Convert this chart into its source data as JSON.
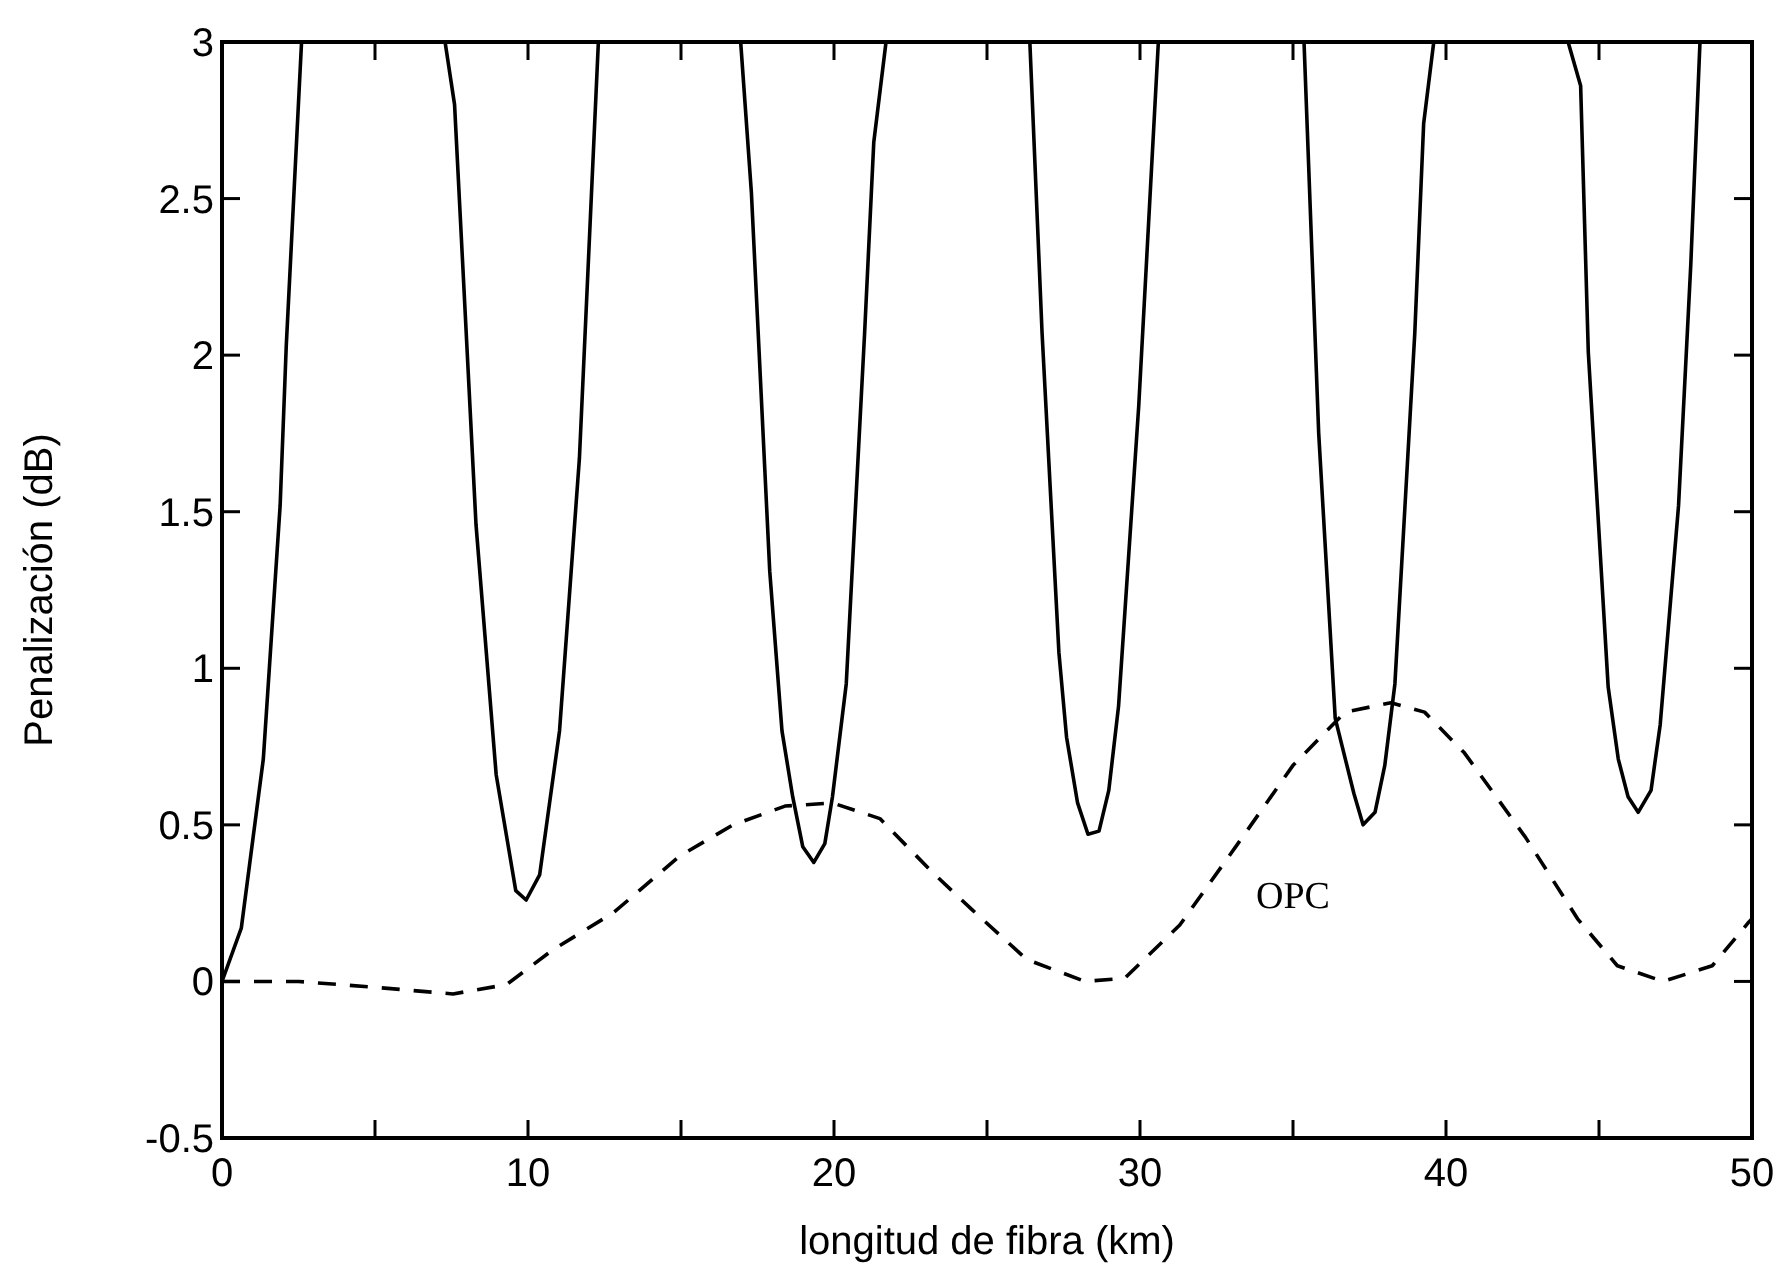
{
  "chart_data": {
    "type": "line",
    "xlabel": "longitud de fibra (km)",
    "ylabel": "Penalización (dB)",
    "xlim": [
      0,
      50
    ],
    "ylim": [
      -0.5,
      3
    ],
    "xticks": [
      0,
      10,
      20,
      30,
      40,
      50
    ],
    "yticks": [
      -0.5,
      0,
      0.5,
      1,
      1.5,
      2,
      2.5,
      3
    ],
    "grid": false,
    "series": [
      {
        "color": "#000000",
        "line_style": "solid",
        "x": [
          0,
          0.63,
          1.35,
          1.9,
          2.1,
          2.6,
          null,
          7.29,
          7.6,
          8.3,
          8.96,
          9.6,
          9.94,
          10.38,
          11.03,
          11.68,
          12.3,
          null,
          16.95,
          17.3,
          17.9,
          18.3,
          18.65,
          18.98,
          19.34,
          19.7,
          19.95,
          20.4,
          21.0,
          21.3,
          21.7,
          null,
          26.4,
          26.8,
          27.35,
          27.6,
          27.96,
          28.3,
          28.66,
          28.98,
          29.3,
          29.96,
          30.6,
          null,
          35.36,
          35.84,
          36.38,
          36.99,
          37.29,
          37.68,
          38.0,
          38.33,
          38.98,
          39.27,
          39.6,
          null,
          43.99,
          44.4,
          44.65,
          45.3,
          45.63,
          45.95,
          46.28,
          46.7,
          47.0,
          47.6,
          48.0,
          48.3
        ],
        "values": [
          0,
          0.17,
          0.71,
          1.52,
          2.03,
          3,
          null,
          3,
          2.8,
          1.46,
          0.66,
          0.29,
          0.26,
          0.34,
          0.8,
          1.67,
          3,
          null,
          3,
          2.52,
          1.31,
          0.8,
          0.59,
          0.43,
          0.38,
          0.44,
          0.59,
          0.95,
          2.07,
          2.68,
          3,
          null,
          3,
          2.07,
          1.05,
          0.78,
          0.57,
          0.47,
          0.48,
          0.61,
          0.88,
          1.84,
          3,
          null,
          3,
          1.75,
          0.84,
          0.6,
          0.5,
          0.54,
          0.69,
          0.95,
          2.07,
          2.74,
          3,
          null,
          3,
          2.86,
          2.01,
          0.94,
          0.71,
          0.59,
          0.54,
          0.61,
          0.82,
          1.52,
          2.29,
          3
        ]
      },
      {
        "name": "OPC",
        "color": "#000000",
        "line_style": "dashed",
        "x": [
          0,
          2.5,
          5.15,
          7.55,
          9.3,
          10.8,
          12.8,
          14.95,
          16.7,
          18.4,
          19.95,
          21.5,
          23.2,
          24.5,
          26.3,
          28.2,
          29.5,
          31.3,
          33.2,
          35.0,
          36.7,
          38.2,
          39.3,
          40.6,
          42.6,
          44.3,
          45.6,
          47.1,
          48.7,
          49.9,
          50
        ],
        "values": [
          0,
          0,
          -0.02,
          -0.04,
          -0.01,
          0.1,
          0.22,
          0.4,
          0.5,
          0.56,
          0.57,
          0.52,
          0.35,
          0.23,
          0.07,
          0,
          0.01,
          0.18,
          0.44,
          0.69,
          0.86,
          0.89,
          0.86,
          0.73,
          0.46,
          0.2,
          0.05,
          0,
          0.05,
          0.19,
          0.2
        ]
      }
    ]
  }
}
